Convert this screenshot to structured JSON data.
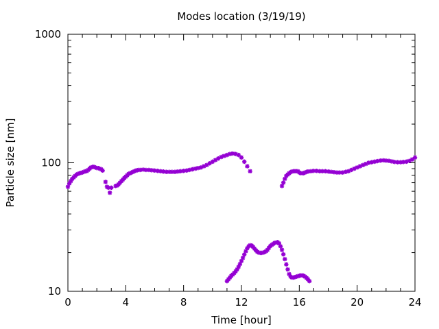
{
  "chart_data": {
    "type": "scatter",
    "title": "Modes location (3/19/19)",
    "xlabel": "Time [hour]",
    "ylabel": "Particle size [nm]",
    "xlim": [
      0,
      24
    ],
    "ylim": [
      10,
      1000
    ],
    "yscale": "log",
    "grid": false,
    "marker": "asterisk",
    "color": "#9400d3",
    "xticks": [
      0,
      4,
      8,
      12,
      16,
      20,
      24
    ],
    "xtick_labels": [
      "0",
      "4",
      "8",
      "12",
      "16",
      "20",
      "24"
    ],
    "yticks": [
      10,
      100,
      1000
    ],
    "ytick_labels": [
      "10",
      "100",
      "1000"
    ],
    "series": [
      {
        "points": [
          [
            0.0,
            65
          ],
          [
            0.1,
            69
          ],
          [
            0.2,
            72
          ],
          [
            0.3,
            75
          ],
          [
            0.4,
            77
          ],
          [
            0.5,
            79
          ],
          [
            0.6,
            81
          ],
          [
            0.7,
            82
          ],
          [
            0.8,
            83
          ],
          [
            0.9,
            83.5
          ],
          [
            1.0,
            84
          ],
          [
            1.1,
            85
          ],
          [
            1.2,
            86
          ],
          [
            1.3,
            86
          ],
          [
            1.4,
            88
          ],
          [
            1.5,
            90
          ],
          [
            1.6,
            92
          ],
          [
            1.7,
            93
          ],
          [
            1.8,
            93
          ],
          [
            1.9,
            92
          ],
          [
            2.0,
            91
          ],
          [
            2.1,
            91
          ],
          [
            2.2,
            90
          ],
          [
            2.3,
            89
          ],
          [
            2.4,
            87
          ],
          [
            2.6,
            71
          ],
          [
            2.7,
            65
          ],
          [
            2.8,
            64
          ],
          [
            2.9,
            58.5
          ],
          [
            3.0,
            64
          ],
          [
            3.3,
            66
          ],
          [
            3.4,
            66.5
          ],
          [
            3.5,
            68
          ],
          [
            3.6,
            70
          ],
          [
            3.7,
            72
          ],
          [
            3.8,
            74
          ],
          [
            3.9,
            76
          ],
          [
            4.0,
            78
          ],
          [
            4.1,
            80
          ],
          [
            4.2,
            82
          ],
          [
            4.3,
            83
          ],
          [
            4.4,
            84
          ],
          [
            4.5,
            85
          ],
          [
            4.6,
            86
          ],
          [
            4.7,
            87
          ],
          [
            4.8,
            87.5
          ],
          [
            4.9,
            88
          ],
          [
            5.0,
            88
          ],
          [
            5.2,
            88.5
          ],
          [
            5.4,
            88
          ],
          [
            5.6,
            88
          ],
          [
            5.8,
            87.5
          ],
          [
            6.0,
            87
          ],
          [
            6.2,
            86.5
          ],
          [
            6.4,
            86
          ],
          [
            6.6,
            85.5
          ],
          [
            6.8,
            85
          ],
          [
            7.0,
            85
          ],
          [
            7.2,
            85
          ],
          [
            7.4,
            85
          ],
          [
            7.6,
            85.5
          ],
          [
            7.8,
            86
          ],
          [
            8.0,
            86.5
          ],
          [
            8.2,
            87
          ],
          [
            8.4,
            88
          ],
          [
            8.6,
            89
          ],
          [
            8.8,
            90
          ],
          [
            9.0,
            91
          ],
          [
            9.2,
            92
          ],
          [
            9.4,
            94
          ],
          [
            9.6,
            96
          ],
          [
            9.8,
            99
          ],
          [
            10.0,
            102
          ],
          [
            10.2,
            105
          ],
          [
            10.4,
            108
          ],
          [
            10.6,
            111
          ],
          [
            10.8,
            113
          ],
          [
            11.0,
            115
          ],
          [
            11.2,
            117
          ],
          [
            11.4,
            118
          ],
          [
            11.6,
            117
          ],
          [
            11.8,
            115
          ],
          [
            12.0,
            110
          ],
          [
            12.2,
            102
          ],
          [
            12.4,
            94
          ],
          [
            12.6,
            86
          ],
          [
            14.8,
            66
          ],
          [
            14.9,
            70
          ],
          [
            15.0,
            75
          ],
          [
            15.1,
            79
          ],
          [
            15.2,
            81
          ],
          [
            15.3,
            83
          ],
          [
            15.4,
            84.5
          ],
          [
            15.5,
            85.5
          ],
          [
            15.6,
            86
          ],
          [
            15.7,
            86
          ],
          [
            15.8,
            86
          ],
          [
            15.9,
            86
          ],
          [
            16.0,
            84
          ],
          [
            16.1,
            83
          ],
          [
            16.2,
            83
          ],
          [
            16.3,
            83
          ],
          [
            16.4,
            84
          ],
          [
            16.5,
            85
          ],
          [
            16.6,
            85.5
          ],
          [
            16.8,
            86
          ],
          [
            17.0,
            86.5
          ],
          [
            17.2,
            86.5
          ],
          [
            17.4,
            86
          ],
          [
            17.6,
            86
          ],
          [
            17.8,
            86
          ],
          [
            18.0,
            85.5
          ],
          [
            18.2,
            85
          ],
          [
            18.4,
            84.5
          ],
          [
            18.6,
            84
          ],
          [
            18.8,
            84
          ],
          [
            19.0,
            84
          ],
          [
            19.2,
            85
          ],
          [
            19.4,
            86
          ],
          [
            19.6,
            88
          ],
          [
            19.8,
            90
          ],
          [
            20.0,
            92
          ],
          [
            20.2,
            94
          ],
          [
            20.4,
            96
          ],
          [
            20.6,
            98
          ],
          [
            20.8,
            100
          ],
          [
            21.0,
            101
          ],
          [
            21.2,
            102
          ],
          [
            21.4,
            103
          ],
          [
            21.6,
            104
          ],
          [
            21.8,
            104.5
          ],
          [
            22.0,
            104
          ],
          [
            22.2,
            103.5
          ],
          [
            22.4,
            102.5
          ],
          [
            22.6,
            101.5
          ],
          [
            22.8,
            101
          ],
          [
            23.0,
            101
          ],
          [
            23.2,
            101.5
          ],
          [
            23.4,
            102
          ],
          [
            23.6,
            103.5
          ],
          [
            23.8,
            106
          ],
          [
            24.0,
            110
          ]
        ]
      },
      {
        "points": [
          [
            11.0,
            12
          ],
          [
            11.1,
            12.4
          ],
          [
            11.2,
            12.8
          ],
          [
            11.3,
            13.2
          ],
          [
            11.4,
            13.5
          ],
          [
            11.5,
            13.9
          ],
          [
            11.6,
            14.3
          ],
          [
            11.7,
            14.8
          ],
          [
            11.8,
            15.5
          ],
          [
            11.9,
            16.3
          ],
          [
            12.0,
            17.2
          ],
          [
            12.1,
            18.2
          ],
          [
            12.2,
            19.3
          ],
          [
            12.3,
            20.5
          ],
          [
            12.4,
            21.6
          ],
          [
            12.5,
            22.4
          ],
          [
            12.6,
            22.8
          ],
          [
            12.7,
            22.7
          ],
          [
            12.8,
            22.2
          ],
          [
            12.9,
            21.5
          ],
          [
            13.0,
            20.8
          ],
          [
            13.1,
            20.3
          ],
          [
            13.2,
            20.0
          ],
          [
            13.3,
            19.9
          ],
          [
            13.4,
            19.9
          ],
          [
            13.5,
            20.0
          ],
          [
            13.6,
            20.2
          ],
          [
            13.7,
            20.5
          ],
          [
            13.8,
            21.0
          ],
          [
            13.9,
            21.8
          ],
          [
            14.0,
            22.5
          ],
          [
            14.1,
            23.0
          ],
          [
            14.2,
            23.4
          ],
          [
            14.3,
            23.8
          ],
          [
            14.4,
            24.0
          ],
          [
            14.5,
            24.1
          ],
          [
            14.6,
            23.6
          ],
          [
            14.7,
            22.4
          ],
          [
            14.8,
            21.0
          ],
          [
            14.9,
            19.4
          ],
          [
            15.0,
            17.8
          ],
          [
            15.1,
            16.2
          ],
          [
            15.2,
            14.8
          ],
          [
            15.3,
            13.6
          ],
          [
            15.4,
            13.0
          ],
          [
            15.5,
            12.8
          ],
          [
            15.6,
            12.8
          ],
          [
            15.7,
            12.9
          ],
          [
            15.8,
            13.0
          ],
          [
            15.9,
            13.1
          ],
          [
            16.0,
            13.2
          ],
          [
            16.1,
            13.3
          ],
          [
            16.2,
            13.3
          ],
          [
            16.3,
            13.2
          ],
          [
            16.4,
            13.0
          ],
          [
            16.5,
            12.7
          ],
          [
            16.6,
            12.4
          ],
          [
            16.7,
            12.0
          ]
        ]
      }
    ]
  }
}
